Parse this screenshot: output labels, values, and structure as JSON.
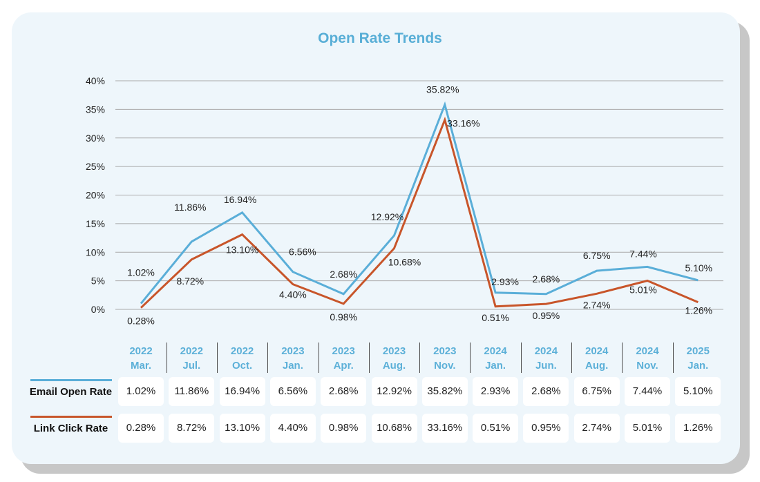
{
  "chart_data": {
    "type": "line",
    "title": "Open Rate Trends",
    "categories": [
      {
        "year": "2022",
        "month": "Mar."
      },
      {
        "year": "2022",
        "month": "Jul."
      },
      {
        "year": "2022",
        "month": "Oct."
      },
      {
        "year": "2023",
        "month": "Jan."
      },
      {
        "year": "2023",
        "month": "Apr."
      },
      {
        "year": "2023",
        "month": "Aug."
      },
      {
        "year": "2023",
        "month": "Nov."
      },
      {
        "year": "2024",
        "month": "Jan."
      },
      {
        "year": "2024",
        "month": "Jun."
      },
      {
        "year": "2024",
        "month": "Aug."
      },
      {
        "year": "2024",
        "month": "Nov."
      },
      {
        "year": "2025",
        "month": "Jan."
      }
    ],
    "series": [
      {
        "name": "Email Open Rate",
        "color": "#5aaed8",
        "values": [
          1.02,
          11.86,
          16.94,
          6.56,
          2.68,
          12.92,
          35.82,
          2.93,
          2.68,
          6.75,
          7.44,
          5.1
        ],
        "labels": [
          "1.02%",
          "11.86%",
          "16.94%",
          "6.56%",
          "2.68%",
          "12.92%",
          "35.82%",
          "2.93%",
          "2.68%",
          "6.75%",
          "7.44%",
          "5.10%"
        ]
      },
      {
        "name": "Link Click Rate",
        "color": "#c8552a",
        "values": [
          0.28,
          8.72,
          13.1,
          4.4,
          0.98,
          10.68,
          33.16,
          0.51,
          0.95,
          2.74,
          5.01,
          1.26
        ],
        "labels": [
          "0.28%",
          "8.72%",
          "13.10%",
          "4.40%",
          "0.98%",
          "10.68%",
          "33.16%",
          "0.51%",
          "0.95%",
          "2.74%",
          "5.01%",
          "1.26%"
        ]
      }
    ],
    "y_ticks": [
      "0%",
      "5%",
      "10%",
      "15%",
      "20%",
      "25%",
      "30%",
      "35%",
      "40%"
    ],
    "ylim": [
      0,
      40
    ],
    "grid": true,
    "legend": "bottom-left table"
  }
}
